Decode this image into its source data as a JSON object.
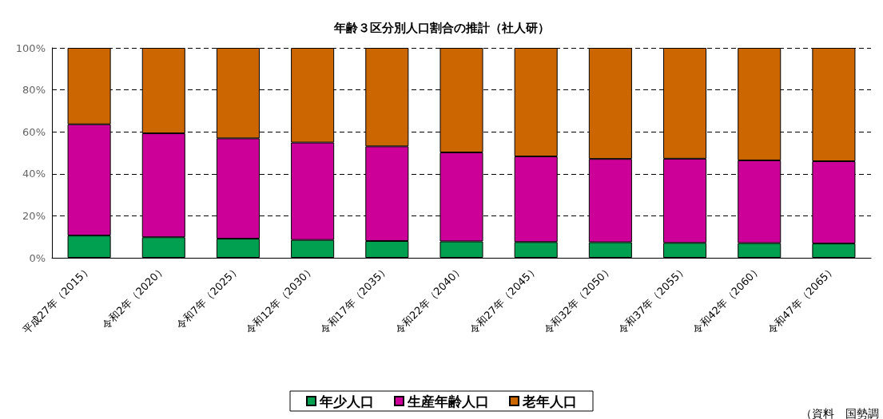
{
  "chart_data": {
    "type": "bar",
    "title": "年齢３区分別人口割合の推計（社人研）",
    "categories": [
      "平成27年（2015）",
      "令和2年（2020）",
      "令和7年（2025）",
      "令和12年（2030）",
      "令和17年（2035）",
      "令和22年（2040）",
      "令和27年（2045）",
      "令和32年（2050）",
      "令和37年（2055）",
      "令和42年（2060）",
      "令和47年（2065）"
    ],
    "series": [
      {
        "name": "年少人口",
        "color": "#00a050",
        "values": [
          10.6,
          9.8,
          9.1,
          8.5,
          8.0,
          7.8,
          7.5,
          7.4,
          7.1,
          7.0,
          6.8
        ]
      },
      {
        "name": "生産年齢人口",
        "color": "#cc0099",
        "values": [
          53.0,
          49.5,
          47.8,
          46.4,
          45.1,
          42.4,
          40.8,
          39.7,
          40.1,
          39.4,
          39.2
        ]
      },
      {
        "name": "老年人口",
        "color": "#cc6600",
        "values": [
          36.4,
          40.7,
          43.1,
          45.1,
          46.9,
          49.8,
          51.7,
          52.9,
          52.8,
          53.6,
          54.0
        ]
      }
    ],
    "stacked": true,
    "ylim": [
      0,
      100
    ],
    "yticks": [
      {
        "value": 0,
        "label": "0%"
      },
      {
        "value": 20,
        "label": "20%"
      },
      {
        "value": 40,
        "label": "40%"
      },
      {
        "value": 60,
        "label": "60%"
      },
      {
        "value": 80,
        "label": "80%"
      },
      {
        "value": 100,
        "label": "100%"
      }
    ],
    "grid": "y",
    "legend": "bottom",
    "annotations": [
      "（資料　国勢調"
    ]
  }
}
